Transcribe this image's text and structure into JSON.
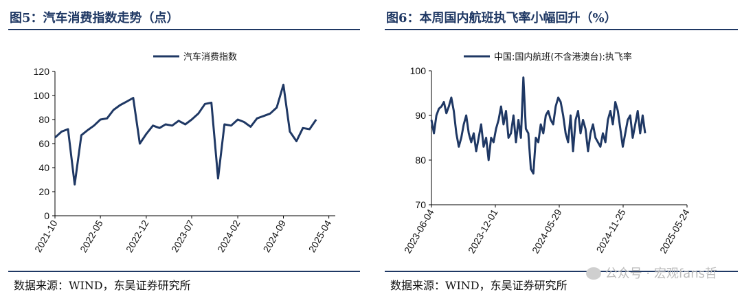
{
  "left": {
    "title": "图5：汽车消费指数走势（点）",
    "source": "数据来源：WIND，东吴证券研究所"
  },
  "right": {
    "title": "图6：本周国内航班执飞率小幅回升（%）",
    "source": "数据来源：WIND，东吴证券研究所"
  },
  "watermark": "公众号 · 宏观fans哲",
  "colors": {
    "series": "#1f3864",
    "rule": "#1f3864"
  },
  "chart_data": [
    {
      "type": "line",
      "legend": "汽车消费指数",
      "legend_position": "top",
      "ylim": [
        0,
        120
      ],
      "yticks": [
        0,
        20,
        40,
        60,
        80,
        100,
        120
      ],
      "xlim": [
        "2021-10",
        "2025-05"
      ],
      "xticks": [
        "2021-10",
        "2022-05",
        "2022-12",
        "2023-07",
        "2024-02",
        "2024-09",
        "2025-04"
      ],
      "grid": false,
      "x": [
        "2021-10",
        "2021-11",
        "2021-12",
        "2022-01",
        "2022-02",
        "2022-03",
        "2022-04",
        "2022-05",
        "2022-06",
        "2022-07",
        "2022-08",
        "2022-09",
        "2022-10",
        "2022-11",
        "2022-12",
        "2023-01",
        "2023-02",
        "2023-03",
        "2023-04",
        "2023-05",
        "2023-06",
        "2023-07",
        "2023-08",
        "2023-09",
        "2023-10",
        "2023-11",
        "2023-12",
        "2024-01",
        "2024-02",
        "2024-03",
        "2024-04",
        "2024-05",
        "2024-06",
        "2024-07",
        "2024-08",
        "2024-09",
        "2024-10",
        "2024-11",
        "2024-12",
        "2025-01",
        "2025-02",
        "2025-03",
        "2025-04",
        "2025-05"
      ],
      "y": [
        65,
        70,
        72,
        26,
        67,
        71,
        75,
        80,
        81,
        88,
        92,
        95,
        98,
        60,
        68,
        75,
        73,
        76,
        75,
        79,
        76,
        80,
        85,
        93,
        94,
        31,
        76,
        75,
        80,
        78,
        74,
        81,
        83,
        85,
        90,
        109,
        70,
        62,
        73,
        72,
        80,
        null,
        null,
        null
      ]
    },
    {
      "type": "line",
      "legend": "中国:国内航班(不含港澳台):执飞率",
      "legend_position": "top",
      "ylim": [
        70,
        100
      ],
      "yticks": [
        70,
        80,
        90,
        100
      ],
      "xlim": [
        "2023-06-04",
        "2025-05-24"
      ],
      "xticks": [
        "2023-06-04",
        "2023-12-01",
        "2024-05-29",
        "2024-11-25",
        "2025-05-24"
      ],
      "grid": false,
      "x": [
        "2023-06-04",
        "2023-06-11",
        "2023-06-18",
        "2023-06-25",
        "2023-07-02",
        "2023-07-09",
        "2023-07-16",
        "2023-07-23",
        "2023-07-30",
        "2023-08-06",
        "2023-08-13",
        "2023-08-20",
        "2023-08-27",
        "2023-09-03",
        "2023-09-10",
        "2023-09-17",
        "2023-09-24",
        "2023-10-01",
        "2023-10-08",
        "2023-10-15",
        "2023-10-22",
        "2023-10-29",
        "2023-11-05",
        "2023-11-12",
        "2023-11-19",
        "2023-11-26",
        "2023-12-03",
        "2023-12-10",
        "2023-12-17",
        "2023-12-24",
        "2023-12-31",
        "2024-01-07",
        "2024-01-14",
        "2024-01-21",
        "2024-01-28",
        "2024-02-04",
        "2024-02-11",
        "2024-02-18",
        "2024-02-25",
        "2024-03-03",
        "2024-03-10",
        "2024-03-17",
        "2024-03-24",
        "2024-03-31",
        "2024-04-07",
        "2024-04-14",
        "2024-04-21",
        "2024-04-28",
        "2024-05-05",
        "2024-05-12",
        "2024-05-19",
        "2024-05-26",
        "2024-06-02",
        "2024-06-09",
        "2024-06-16",
        "2024-06-23",
        "2024-06-30",
        "2024-07-07",
        "2024-07-14",
        "2024-07-21",
        "2024-07-28",
        "2024-08-04",
        "2024-08-11",
        "2024-08-18",
        "2024-08-25",
        "2024-09-01",
        "2024-09-08",
        "2024-09-15",
        "2024-09-22",
        "2024-09-29",
        "2024-10-06",
        "2024-10-13",
        "2024-10-20",
        "2024-10-27",
        "2024-11-03",
        "2024-11-10",
        "2024-11-17",
        "2024-11-24",
        "2024-12-01",
        "2024-12-08",
        "2024-12-15",
        "2024-12-22",
        "2024-12-29",
        "2025-01-05",
        "2025-01-12",
        "2025-01-19",
        "2025-01-26",
        "2025-02-02",
        "2025-02-09",
        "2025-02-16",
        "2025-02-23",
        "2025-03-02",
        "2025-03-09",
        "2025-03-16",
        "2025-03-23",
        "2025-03-30",
        "2025-04-06",
        "2025-04-13",
        "2025-04-20",
        "2025-04-27",
        "2025-05-04",
        "2025-05-11",
        "2025-05-18",
        "2025-05-24"
      ],
      "y": [
        89,
        86,
        90,
        91.5,
        92,
        93,
        90.5,
        92,
        94,
        91,
        86,
        83,
        85,
        88,
        90,
        86,
        84,
        86,
        82,
        85,
        88,
        83,
        85,
        80,
        85,
        84,
        87,
        89,
        92,
        88,
        91,
        85,
        86,
        90,
        84,
        89,
        85,
        98.5,
        87,
        86,
        78,
        77,
        85,
        84,
        88,
        86,
        90,
        91,
        89,
        88,
        92,
        94,
        93,
        90,
        86,
        84,
        90,
        82,
        89,
        91,
        86,
        89,
        87,
        82,
        86,
        88,
        85,
        84,
        83,
        86,
        84,
        89,
        91,
        88,
        93,
        91,
        87,
        83,
        86,
        89,
        90,
        85,
        88,
        91,
        86,
        90,
        86,
        null,
        null,
        null,
        null,
        null,
        null,
        null,
        null,
        null,
        null,
        null,
        null,
        null,
        null,
        null,
        null,
        null
      ]
    }
  ]
}
